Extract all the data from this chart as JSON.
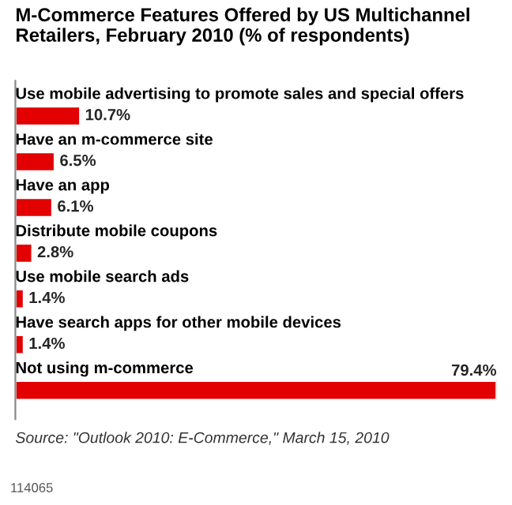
{
  "chart_data": {
    "type": "bar",
    "orientation": "horizontal",
    "title": "M-Commerce Features Offered by US Multichannel Retailers, February 2010 (% of respondents)",
    "categories": [
      "Use mobile advertising to promote sales and special offers",
      "Have an m-commerce site",
      "Have an app",
      "Distribute mobile coupons",
      "Use mobile search ads",
      "Have search apps for other mobile devices",
      "Not using m-commerce"
    ],
    "values": [
      10.7,
      6.5,
      6.1,
      2.8,
      1.4,
      1.4,
      79.4
    ],
    "value_labels": [
      "10.7%",
      "6.5%",
      "6.1%",
      "2.8%",
      "1.4%",
      "1.4%",
      "79.4%"
    ],
    "color": "#e20000",
    "annotations": [
      "Source: \"Outlook 2010: E-Commerce,\" March 15, 2010",
      "114065"
    ]
  }
}
